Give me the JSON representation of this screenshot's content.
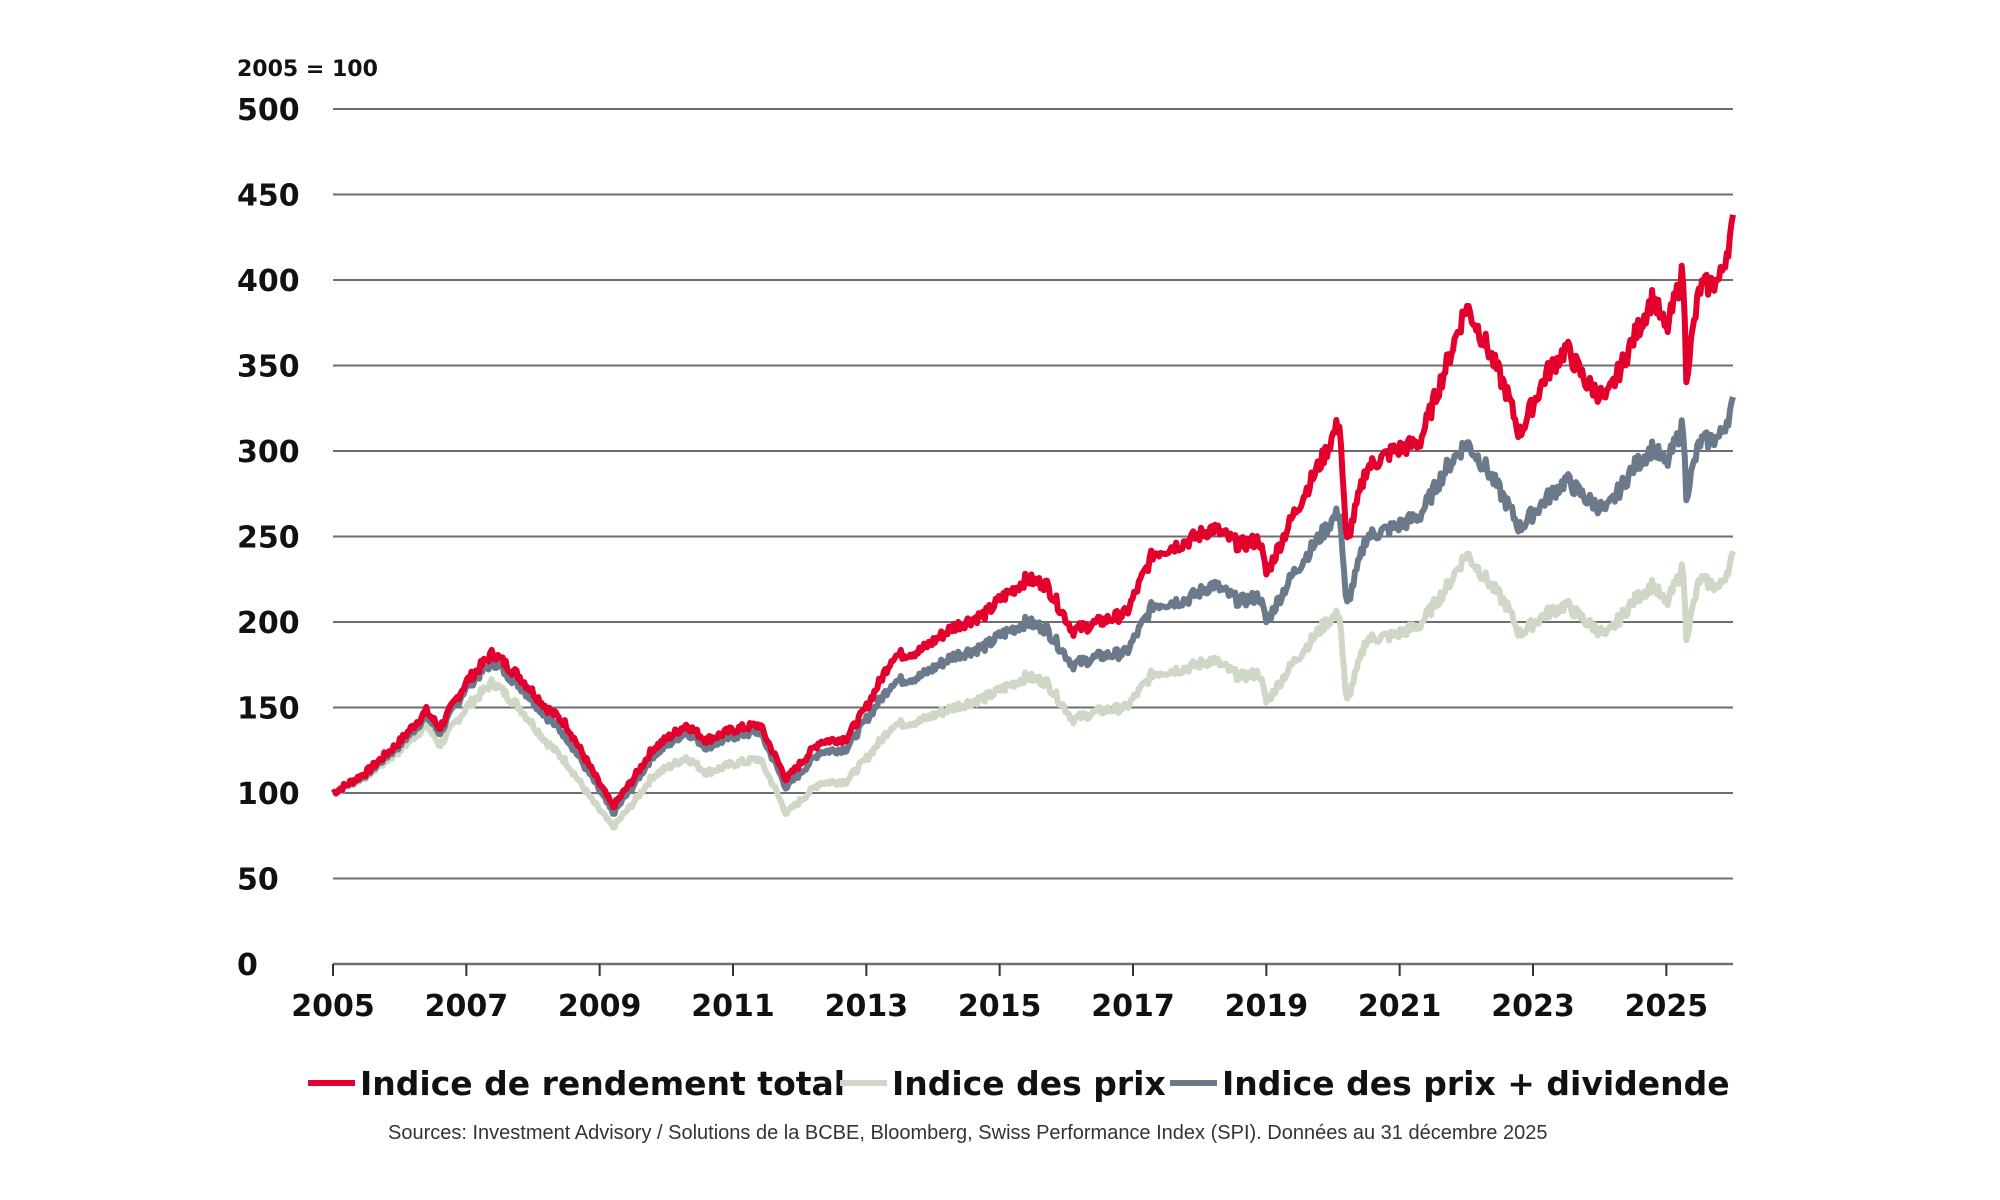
{
  "chart_data": {
    "type": "line",
    "title": "",
    "subtitle": "2005 = 100",
    "xlabel": "",
    "ylabel": "",
    "xlim": [
      2005,
      2026
    ],
    "ylim": [
      0,
      500
    ],
    "y_ticks": [
      0,
      50,
      100,
      150,
      200,
      250,
      300,
      350,
      400,
      450,
      500
    ],
    "x_ticks": [
      2005,
      2007,
      2009,
      2011,
      2013,
      2015,
      2017,
      2019,
      2021,
      2023,
      2025
    ],
    "grid": true,
    "legend_position": "bottom",
    "source": "Sources: Investment Advisory / Solutions de la BCBE, Bloomberg, Swiss Performance Index (SPI). Données au 31 décembre 2025",
    "x": [
      2005.0,
      2005.5,
      2006.0,
      2006.4,
      2006.6,
      2007.0,
      2007.4,
      2007.8,
      2008.2,
      2008.5,
      2008.9,
      2009.2,
      2009.5,
      2009.8,
      2010.3,
      2010.6,
      2011.0,
      2011.4,
      2011.6,
      2011.8,
      2012.3,
      2012.7,
      2013.0,
      2013.4,
      2013.8,
      2014.3,
      2014.8,
      2015.0,
      2015.4,
      2015.7,
      2016.1,
      2016.5,
      2016.9,
      2017.3,
      2017.8,
      2018.2,
      2018.6,
      2018.9,
      2019.0,
      2019.4,
      2019.9,
      2020.1,
      2020.2,
      2020.5,
      2020.9,
      2021.3,
      2021.7,
      2022.0,
      2022.3,
      2022.6,
      2022.8,
      2023.2,
      2023.5,
      2023.8,
      2024.1,
      2024.5,
      2024.8,
      2025.0,
      2025.25,
      2025.3,
      2025.5,
      2025.8,
      2026.0
    ],
    "series": [
      {
        "name": "Indice de rendement total",
        "color": "#e3002d",
        "values": [
          100,
          112,
          130,
          148,
          138,
          165,
          182,
          168,
          150,
          140,
          112,
          92,
          108,
          126,
          140,
          131,
          137,
          140,
          124,
          108,
          130,
          132,
          150,
          180,
          183,
          197,
          205,
          213,
          225,
          222,
          195,
          200,
          205,
          240,
          247,
          255,
          245,
          248,
          228,
          262,
          300,
          318,
          245,
          290,
          300,
          305,
          350,
          385,
          362,
          335,
          310,
          345,
          360,
          340,
          330,
          365,
          390,
          370,
          405,
          345,
          395,
          400,
          432
        ]
      },
      {
        "name": "Indice des prix",
        "color": "#cfd8c6",
        "values": [
          100,
          110,
          125,
          140,
          128,
          150,
          165,
          150,
          130,
          118,
          95,
          80,
          94,
          110,
          121,
          112,
          117,
          120,
          105,
          88,
          106,
          107,
          120,
          140,
          142,
          150,
          156,
          160,
          168,
          165,
          143,
          148,
          150,
          170,
          173,
          178,
          168,
          170,
          153,
          176,
          200,
          205,
          152,
          190,
          192,
          198,
          220,
          240,
          225,
          210,
          193,
          205,
          210,
          200,
          192,
          212,
          222,
          210,
          232,
          192,
          225,
          220,
          238
        ]
      },
      {
        "name": "Indice des prix + dividende",
        "color": "#6b7a8a",
        "values": [
          100,
          111,
          128,
          145,
          135,
          162,
          177,
          163,
          145,
          133,
          108,
          88,
          104,
          122,
          136,
          127,
          133,
          136,
          120,
          103,
          124,
          126,
          143,
          165,
          168,
          180,
          186,
          192,
          200,
          196,
          175,
          180,
          182,
          210,
          213,
          222,
          212,
          215,
          200,
          228,
          255,
          265,
          208,
          250,
          255,
          262,
          290,
          305,
          290,
          270,
          255,
          272,
          283,
          272,
          265,
          290,
          302,
          292,
          315,
          275,
          305,
          308,
          327
        ]
      }
    ]
  }
}
